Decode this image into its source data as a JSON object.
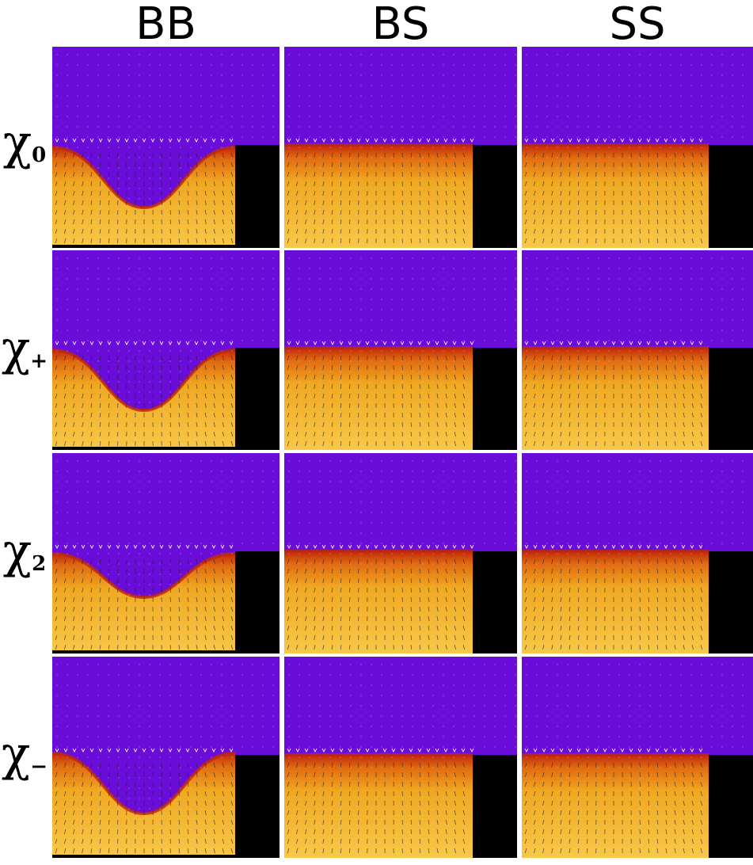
{
  "columns": [
    {
      "key": "bb",
      "label": "BB"
    },
    {
      "key": "bs",
      "label": "BS"
    },
    {
      "key": "ss",
      "label": "SS"
    }
  ],
  "rows": [
    {
      "key": "chi0",
      "symbol": "χ",
      "subscript": "0"
    },
    {
      "key": "chiplus",
      "symbol": "χ",
      "subscript": "+"
    },
    {
      "key": "chi2",
      "symbol": "χ",
      "subscript": "2"
    },
    {
      "key": "chiminus",
      "symbol": "χ",
      "subscript": "−"
    }
  ],
  "colors": {
    "phase_top": "#6a0dd8",
    "interface": "#c0280a",
    "phase_bottom": "#f0a820",
    "phase_bottom_light": "#f8c848",
    "obstacle": "#000000",
    "separator": "#ffffff"
  },
  "panels": [
    {
      "row": 0,
      "col": 0,
      "profile": "bowl"
    },
    {
      "row": 0,
      "col": 1,
      "profile": "flat"
    },
    {
      "row": 0,
      "col": 2,
      "profile": "flat"
    },
    {
      "row": 1,
      "col": 0,
      "profile": "bowl"
    },
    {
      "row": 1,
      "col": 1,
      "profile": "flat"
    },
    {
      "row": 1,
      "col": 2,
      "profile": "flat"
    },
    {
      "row": 2,
      "col": 0,
      "profile": "bowl"
    },
    {
      "row": 2,
      "col": 1,
      "profile": "flat"
    },
    {
      "row": 2,
      "col": 2,
      "profile": "flat"
    },
    {
      "row": 3,
      "col": 0,
      "profile": "bowl"
    },
    {
      "row": 3,
      "col": 1,
      "profile": "flat"
    },
    {
      "row": 3,
      "col": 2,
      "profile": "flat"
    }
  ]
}
